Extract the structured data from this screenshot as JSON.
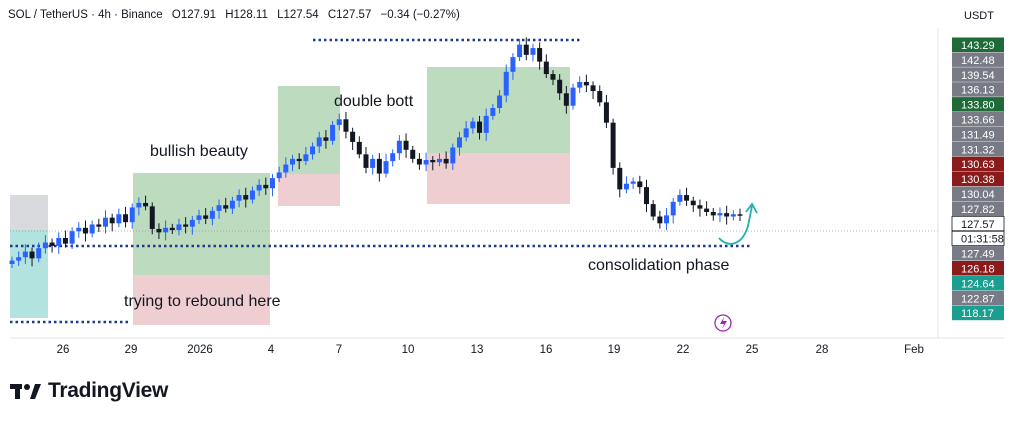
{
  "header": {
    "symbol": "SOL / TetherUS · 4h · Binance",
    "open": "O127.91",
    "high": "H128.11",
    "low": "L127.54",
    "close": "C127.57",
    "change": "−0.34 (−0.27%)"
  },
  "currency": "USDT",
  "brand": "TradingView",
  "chart_data": {
    "type": "candlestick",
    "x_ticks": [
      "26",
      "29",
      "2026",
      "4",
      "7",
      "10",
      "13",
      "16",
      "19",
      "22",
      "25",
      "28",
      "Feb"
    ],
    "y_labels": [
      {
        "label": "143.29",
        "color": "#1e6b38"
      },
      {
        "label": "142.48",
        "color": "#787b86"
      },
      {
        "label": "139.54",
        "color": "#787b86"
      },
      {
        "label": "136.13",
        "color": "#787b86"
      },
      {
        "label": "133.80",
        "color": "#1e6b38"
      },
      {
        "label": "133.66",
        "color": "#787b86"
      },
      {
        "label": "131.49",
        "color": "#787b86"
      },
      {
        "label": "131.32",
        "color": "#787b86"
      },
      {
        "label": "130.63",
        "color": "#8b1a1a"
      },
      {
        "label": "130.38",
        "color": "#8b1a1a"
      },
      {
        "label": "130.04",
        "color": "#787b86"
      },
      {
        "label": "127.82",
        "color": "#787b86"
      },
      {
        "label": "127.57",
        "color": "#131722"
      },
      {
        "label": "01:31:58",
        "color": "#131722"
      },
      {
        "label": "127.49",
        "color": "#787b86"
      },
      {
        "label": "126.18",
        "color": "#8b1a1a"
      },
      {
        "label": "124.64",
        "color": "#1a9e8f"
      },
      {
        "label": "122.87",
        "color": "#787b86"
      },
      {
        "label": "118.17",
        "color": "#1a9e8f"
      }
    ],
    "last_price": 127.57,
    "countdown": "01:31:58",
    "annotations": [
      "bullish beauty",
      "double bott",
      "trying to rebound here",
      "consolidation phase"
    ],
    "up_color": "#2962ff",
    "down_color": "#131722",
    "close_path": [
      [
        0,
        123.6
      ],
      [
        3,
        123.9
      ],
      [
        6,
        124.4
      ],
      [
        9,
        123.8
      ],
      [
        12,
        124.7
      ],
      [
        15,
        125.2
      ],
      [
        18,
        124.9
      ],
      [
        21,
        125.6
      ],
      [
        24,
        125.1
      ],
      [
        27,
        126.2
      ],
      [
        30,
        126.5
      ],
      [
        33,
        126.0
      ],
      [
        36,
        126.8
      ],
      [
        39,
        126.6
      ],
      [
        42,
        127.4
      ],
      [
        45,
        126.9
      ],
      [
        48,
        127.7
      ],
      [
        51,
        127.0
      ],
      [
        54,
        128.3
      ],
      [
        57,
        128.7
      ],
      [
        60,
        128.4
      ],
      [
        63,
        126.4
      ],
      [
        66,
        126.1
      ],
      [
        69,
        126.5
      ],
      [
        72,
        126.3
      ],
      [
        75,
        126.8
      ],
      [
        78,
        126.6
      ],
      [
        81,
        127.2
      ],
      [
        84,
        127.6
      ],
      [
        87,
        127.3
      ],
      [
        90,
        128.0
      ],
      [
        93,
        128.5
      ],
      [
        96,
        128.2
      ],
      [
        99,
        128.9
      ],
      [
        102,
        129.4
      ],
      [
        105,
        129.0
      ],
      [
        108,
        129.8
      ],
      [
        111,
        130.3
      ],
      [
        114,
        130.0
      ],
      [
        117,
        130.9
      ],
      [
        120,
        131.4
      ],
      [
        123,
        132.1
      ],
      [
        126,
        132.6
      ],
      [
        129,
        132.4
      ],
      [
        132,
        133.0
      ],
      [
        135,
        133.7
      ],
      [
        138,
        134.5
      ],
      [
        141,
        134.2
      ],
      [
        144,
        135.6
      ],
      [
        147,
        136.1
      ],
      [
        150,
        135.0
      ],
      [
        153,
        134.1
      ],
      [
        156,
        133.0
      ],
      [
        159,
        131.8
      ],
      [
        162,
        132.6
      ],
      [
        165,
        131.3
      ],
      [
        168,
        132.4
      ],
      [
        171,
        133.1
      ],
      [
        174,
        134.2
      ],
      [
        177,
        133.4
      ],
      [
        180,
        132.6
      ],
      [
        183,
        132.1
      ],
      [
        186,
        132.5
      ],
      [
        189,
        132.3
      ],
      [
        192,
        132.6
      ],
      [
        195,
        132.2
      ],
      [
        198,
        133.6
      ],
      [
        201,
        134.5
      ],
      [
        204,
        135.3
      ],
      [
        207,
        135.9
      ],
      [
        210,
        134.9
      ],
      [
        213,
        136.4
      ],
      [
        216,
        137.1
      ],
      [
        219,
        138.2
      ],
      [
        222,
        140.3
      ],
      [
        225,
        141.6
      ],
      [
        228,
        142.7
      ],
      [
        231,
        141.8
      ],
      [
        234,
        142.4
      ],
      [
        237,
        141.2
      ],
      [
        240,
        140.1
      ],
      [
        243,
        139.6
      ],
      [
        246,
        138.4
      ],
      [
        249,
        137.3
      ],
      [
        252,
        138.9
      ],
      [
        255,
        139.4
      ],
      [
        258,
        139.1
      ],
      [
        261,
        138.6
      ],
      [
        264,
        137.6
      ],
      [
        267,
        135.8
      ],
      [
        270,
        131.8
      ],
      [
        273,
        129.9
      ],
      [
        276,
        130.4
      ],
      [
        279,
        130.6
      ],
      [
        282,
        130.1
      ],
      [
        285,
        128.6
      ],
      [
        288,
        127.5
      ],
      [
        291,
        126.9
      ],
      [
        294,
        127.6
      ],
      [
        297,
        128.8
      ],
      [
        300,
        129.4
      ],
      [
        303,
        128.9
      ],
      [
        306,
        128.5
      ],
      [
        309,
        128.2
      ],
      [
        312,
        127.9
      ],
      [
        315,
        127.6
      ],
      [
        318,
        127.8
      ],
      [
        321,
        127.5
      ],
      [
        324,
        127.7
      ],
      [
        327,
        127.57
      ]
    ]
  }
}
